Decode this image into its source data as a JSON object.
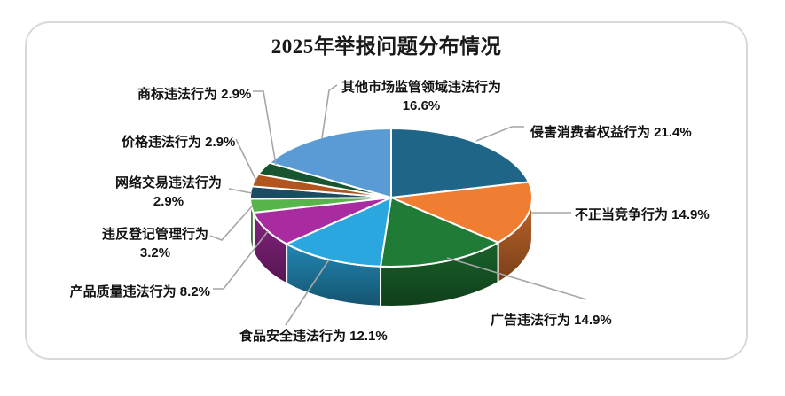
{
  "frame": {
    "border_color": "#D9D9D9"
  },
  "chart_data": {
    "type": "pie",
    "style": "3d-pie",
    "title": "2025年举报问题分布情况",
    "legend_position": "none",
    "labels": "outside with leader lines, format: name value%",
    "leader_color": "#A6A6A6",
    "start_angle_deg": -90,
    "direction": "clockwise",
    "slices": [
      {
        "key": "consumer-rights",
        "name": "侵害消费者权益行为",
        "value": 21.4,
        "color": "#1F6587"
      },
      {
        "key": "unfair-competition",
        "name": "不正当竞争行为",
        "value": 14.9,
        "color": "#F07E32"
      },
      {
        "key": "advertising",
        "name": "广告违法行为",
        "value": 14.9,
        "color": "#1F7B35"
      },
      {
        "key": "food-safety",
        "name": "食品安全违法行为",
        "value": 12.1,
        "color": "#29A7DE"
      },
      {
        "key": "product-quality",
        "name": "产品质量违法行为",
        "value": 8.2,
        "color": "#A82BA0"
      },
      {
        "key": "registration-management",
        "name": "违反登记管理行为",
        "value": 3.2,
        "color": "#58B54B"
      },
      {
        "key": "online-transaction",
        "name": "网络交易违法行为",
        "value": 2.9,
        "color": "#1D4B61"
      },
      {
        "key": "pricing",
        "name": "价格违法行为",
        "value": 2.9,
        "color": "#B1541E"
      },
      {
        "key": "trademark",
        "name": "商标违法行为",
        "value": 2.9,
        "color": "#175430"
      },
      {
        "key": "other-market-supervision",
        "name": "其他市场监管领域违法行为",
        "value": 16.6,
        "color": "#5B9BD5"
      }
    ]
  }
}
